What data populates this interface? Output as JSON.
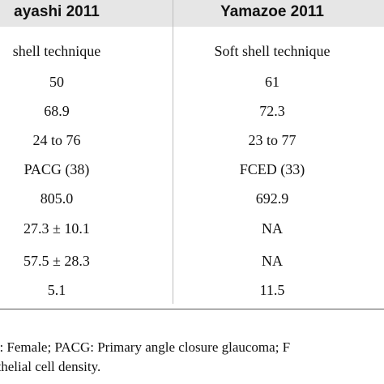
{
  "table": {
    "headers": [
      "ayashi 2011",
      "Yamazoe 2011"
    ],
    "rows": [
      [
        "shell technique",
        "Soft shell technique"
      ],
      [
        "50",
        "61"
      ],
      [
        "68.9",
        "72.3"
      ],
      [
        "24 to 76",
        "23 to 77"
      ],
      [
        "PACG (38)",
        "FCED (33)"
      ],
      [
        "805.0",
        "692.9"
      ],
      [
        "27.3 ± 10.1",
        "NA"
      ],
      [
        "57.5 ± 28.3",
        "NA"
      ],
      [
        "5.1",
        "11.5"
      ]
    ]
  },
  "footnote": {
    "line1": "F: Female; PACG: Primary angle closure glaucoma; F",
    "line2": "othelial cell density."
  }
}
